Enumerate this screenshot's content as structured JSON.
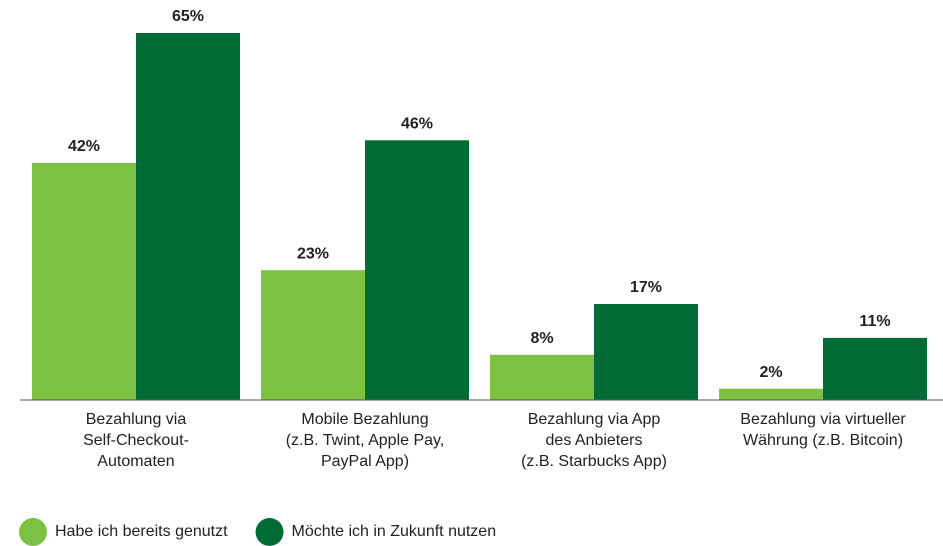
{
  "chart_data": {
    "type": "bar",
    "categories": [
      [
        "Bezahlung via",
        "Self-Checkout-",
        "Automaten"
      ],
      [
        "Mobile Bezahlung",
        "(z.B. Twint, Apple Pay,",
        "PayPal App)"
      ],
      [
        "Bezahlung via App",
        "des Anbieters",
        "(z.B. Starbucks App)"
      ],
      [
        "Bezahlung via virtueller",
        "Währung (z.B. Bitcoin)"
      ]
    ],
    "series": [
      {
        "name": "Habe ich bereits genutzt",
        "color": "#7dc142",
        "values": [
          42,
          23,
          8,
          2
        ],
        "value_labels": [
          "42%",
          "23%",
          "8%",
          "2%"
        ]
      },
      {
        "name": "Möchte ich in Zukunft nutzen",
        "color": "#006b35",
        "values": [
          65,
          46,
          17,
          11
        ],
        "value_labels": [
          "65%",
          "46%",
          "17%",
          "11%"
        ]
      }
    ],
    "ylim": [
      0,
      65
    ],
    "legend": "bottom-left"
  }
}
